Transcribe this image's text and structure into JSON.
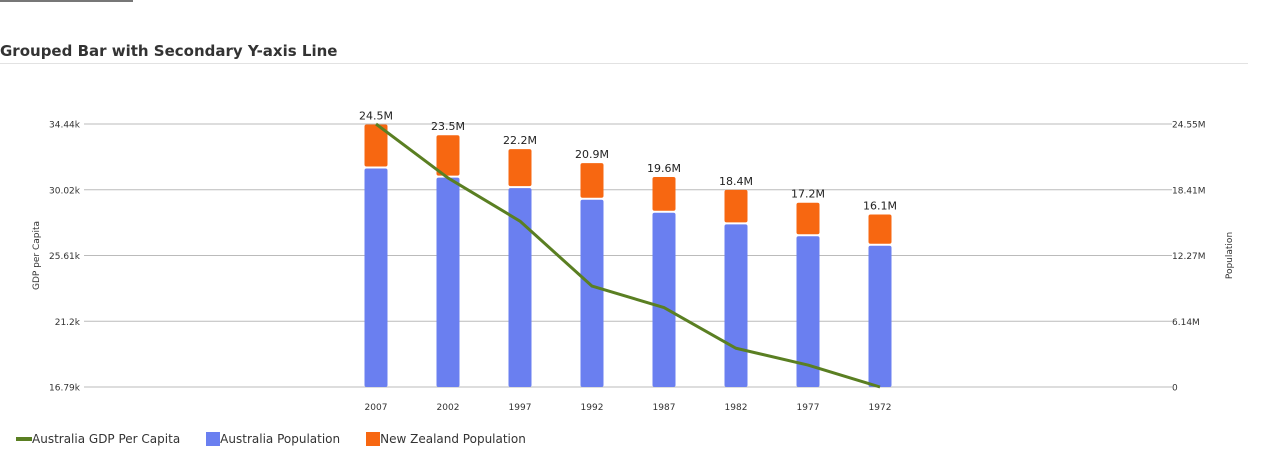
{
  "page": {
    "title": "Grouped Bar with Secondary Y-axis Line"
  },
  "colors": {
    "gdp_line": "#5a7f22",
    "australia_population": "#6a7ff0",
    "new_zealand_population": "#f76711",
    "grid": "#bbbbbb"
  },
  "chart_data": {
    "type": "bar",
    "title": "Grouped Bar with Secondary Y-axis Line",
    "xlabel": "",
    "ylabel": "GDP per Capita",
    "y2label": "Population",
    "categories": [
      "2007",
      "2002",
      "1997",
      "1992",
      "1987",
      "1982",
      "1977",
      "1972"
    ],
    "y_ticks": [
      "34.44k",
      "30.02k",
      "25.61k",
      "21.2k",
      "16.79k"
    ],
    "ylim": [
      16790,
      34440
    ],
    "y2_ticks": [
      "24.55M",
      "18.41M",
      "12.27M",
      "6.14M",
      "0"
    ],
    "y2lim": [
      0,
      24550000
    ],
    "stacked": true,
    "series": [
      {
        "name": "Australia Population",
        "kind": "bar",
        "axis": "y2",
        "color": "#6a7ff0",
        "values": [
          20400000,
          19550000,
          18560000,
          17480000,
          16260000,
          15180000,
          14070000,
          13180000
        ]
      },
      {
        "name": "New Zealand Population",
        "kind": "bar",
        "axis": "y2",
        "color": "#f76711",
        "values": [
          4100000,
          3950000,
          3640000,
          3420000,
          3340000,
          3220000,
          3130000,
          2920000
        ]
      },
      {
        "name": "Australia GDP Per Capita",
        "kind": "line",
        "axis": "y",
        "color": "#5a7f22",
        "values": [
          34440,
          30820,
          27920,
          23560,
          22120,
          19390,
          18260,
          16790
        ]
      }
    ],
    "total_labels": [
      "24.5M",
      "23.5M",
      "22.2M",
      "20.9M",
      "19.6M",
      "18.4M",
      "17.2M",
      "16.1M"
    ],
    "grid": true,
    "legend_position": "bottom-left"
  }
}
